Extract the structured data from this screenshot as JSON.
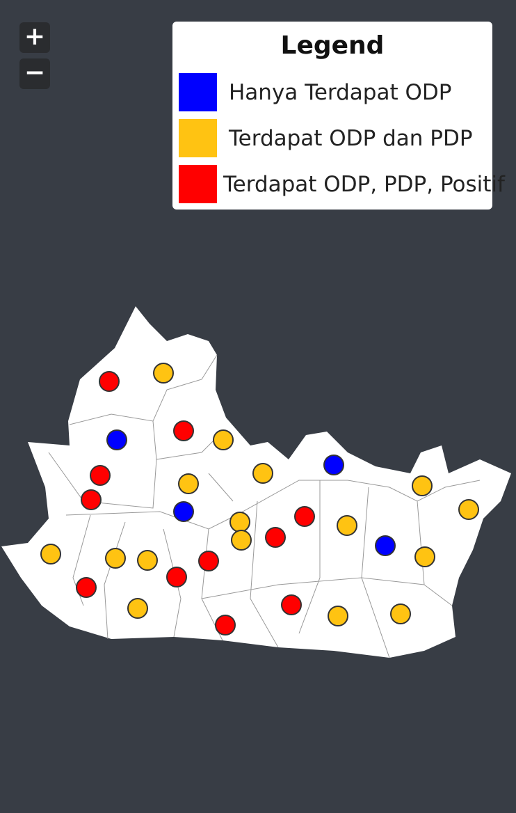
{
  "controls": {
    "zoom_in": "+",
    "zoom_out": "−"
  },
  "legend": {
    "title": "Legend",
    "items": [
      {
        "label": "Hanya   Terdapat   ODP",
        "color": "#0000ff"
      },
      {
        "label": "Terdapat ODP  dan  PDP",
        "color": "#ffc312"
      },
      {
        "label": "Terdapat ODP, PDP, Positif",
        "color": "#ff0000"
      }
    ]
  }
}
